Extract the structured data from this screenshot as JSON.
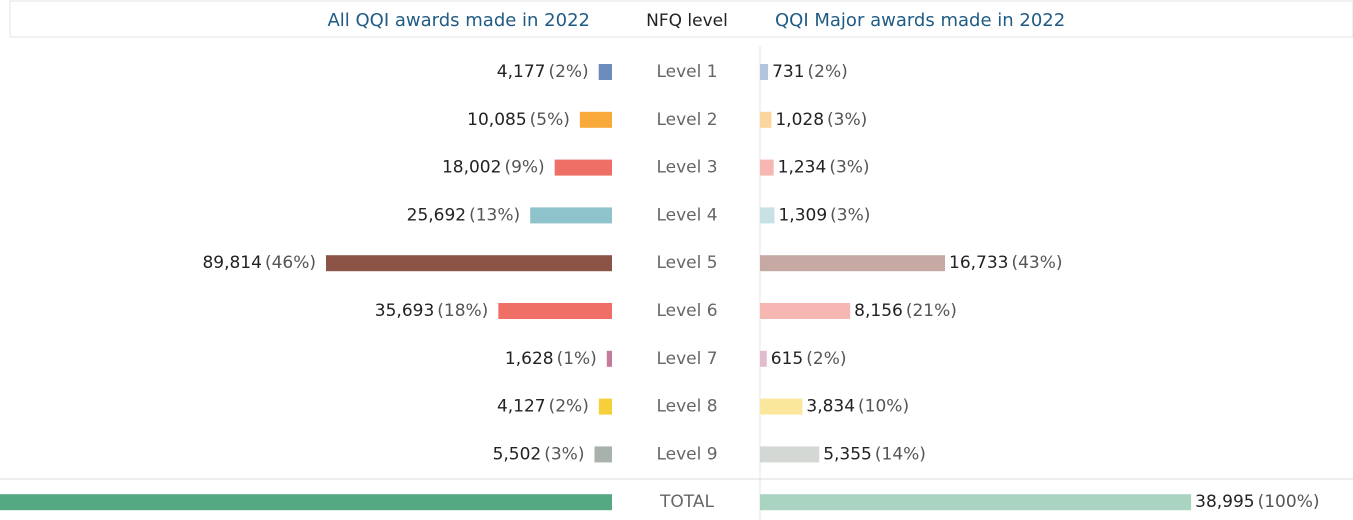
{
  "chart_data": {
    "type": "butterfly",
    "category_title": "NFQ level",
    "categories": [
      "Level 1",
      "Level 2",
      "Level 3",
      "Level 4",
      "Level 5",
      "Level 6",
      "Level 7",
      "Level 8",
      "Level 9",
      "TOTAL"
    ],
    "series": [
      {
        "name": "All QQI awards  made in 2022",
        "side": "left",
        "values": [
          4177,
          10085,
          18002,
          25692,
          89814,
          35693,
          1628,
          4127,
          5502,
          194720
        ],
        "value_labels": [
          "4,177",
          "10,085",
          "18,002",
          "25,692",
          "89,814",
          "35,693",
          "1,628",
          "4,127",
          "5,502",
          null
        ],
        "shares": [
          2,
          5,
          9,
          13,
          46,
          18,
          1,
          2,
          3,
          null
        ],
        "share_labels": [
          "(2%)",
          "(5%)",
          "(9%)",
          "(13%)",
          "(46%)",
          "(18%)",
          "(1%)",
          "(2%)",
          "(3%)",
          null
        ],
        "colors": [
          "#6b8cba",
          "#f9a93a",
          "#ef6f67",
          "#8fc3cb",
          "#8b5446",
          "#ef6f67",
          "#c27b9b",
          "#f6cf3a",
          "#a9b1ab",
          "#54a983"
        ]
      },
      {
        "name": "QQI Major awards made in 2022",
        "side": "right",
        "values": [
          731,
          1028,
          1234,
          1309,
          16733,
          8156,
          615,
          3834,
          5355,
          38995
        ],
        "value_labels": [
          "731",
          "1,028",
          "1,234",
          "1,309",
          "16,733",
          "8,156",
          "615",
          "3,834",
          "5,355",
          "38,995"
        ],
        "shares": [
          2,
          3,
          3,
          3,
          43,
          21,
          2,
          10,
          14,
          100
        ],
        "share_labels": [
          "(2%)",
          "(3%)",
          "(3%)",
          "(3%)",
          "(43%)",
          "(21%)",
          "(2%)",
          "(10%)",
          "(14%)",
          "(100%)"
        ],
        "colors": [
          "#b3c5dd",
          "#fbd59e",
          "#f6b7b3",
          "#c7e1e5",
          "#c5a9a2",
          "#f6b7b3",
          "#e0bccd",
          "#fae79c",
          "#d4d8d5",
          "#a9d4c1"
        ]
      }
    ]
  }
}
